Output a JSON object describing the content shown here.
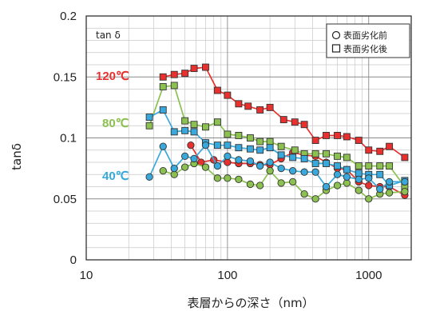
{
  "chart_data": {
    "type": "line",
    "ylabel": "tanδ",
    "xlabel": "表層からの深さ（nm）",
    "inner_label": "tan δ",
    "x_scale": "log",
    "xlim": [
      10,
      2000
    ],
    "ylim": [
      0,
      0.2
    ],
    "x_tick_labels": [
      "10",
      "100",
      "1000"
    ],
    "y_tick_labels": [
      "0",
      "0.05",
      "0.1",
      "0.15",
      "0.2"
    ],
    "x_ticks": [
      10,
      100,
      1000
    ],
    "y_ticks": [
      0,
      0.05,
      0.1,
      0.15,
      0.2
    ],
    "grid": true,
    "legend": {
      "position": "top-right",
      "entries": [
        {
          "label": "表面劣化前",
          "marker": "circle"
        },
        {
          "label": "表面劣化後",
          "marker": "square"
        }
      ]
    },
    "temperature_labels": [
      {
        "text": "120℃",
        "color": "#e8312f"
      },
      {
        "text": "80℃",
        "color": "#8cc152"
      },
      {
        "text": "40℃",
        "color": "#39a9dc"
      }
    ],
    "series": [
      {
        "temp": "120℃",
        "condition": "表面劣化後",
        "marker": "square",
        "color": "#e8312f",
        "x": [
          35,
          42,
          50,
          58,
          70,
          85,
          100,
          120,
          140,
          170,
          200,
          250,
          300,
          350,
          420,
          500,
          600,
          700,
          850,
          1000,
          1200,
          1400,
          1800
        ],
        "y": [
          0.15,
          0.152,
          0.153,
          0.157,
          0.158,
          0.139,
          0.135,
          0.128,
          0.126,
          0.123,
          0.125,
          0.115,
          0.113,
          0.111,
          0.098,
          0.102,
          0.102,
          0.101,
          0.098,
          0.09,
          0.089,
          0.093,
          0.084
        ]
      },
      {
        "temp": "120℃",
        "condition": "表面劣化前",
        "marker": "circle",
        "color": "#e8312f",
        "x": [
          55,
          65,
          80,
          100,
          120,
          145,
          170,
          200,
          240,
          290,
          350,
          420,
          500,
          600,
          700,
          850,
          1000,
          1200,
          1400,
          1800
        ],
        "y": [
          0.094,
          0.08,
          0.082,
          0.08,
          0.079,
          0.079,
          0.078,
          0.078,
          0.083,
          0.088,
          0.086,
          0.085,
          0.08,
          0.075,
          0.074,
          0.064,
          0.061,
          0.06,
          0.06,
          0.053
        ]
      },
      {
        "temp": "80℃",
        "condition": "表面劣化後",
        "marker": "square",
        "color": "#8cc152",
        "x": [
          28,
          35,
          42,
          50,
          58,
          70,
          85,
          100,
          120,
          145,
          170,
          200,
          240,
          300,
          350,
          420,
          500,
          600,
          700,
          850,
          1000,
          1200,
          1400,
          1800
        ],
        "y": [
          0.11,
          0.142,
          0.143,
          0.114,
          0.111,
          0.109,
          0.113,
          0.103,
          0.102,
          0.1,
          0.097,
          0.097,
          0.093,
          0.09,
          0.087,
          0.087,
          0.087,
          0.085,
          0.084,
          0.077,
          0.077,
          0.077,
          0.077,
          0.06
        ]
      },
      {
        "temp": "80℃",
        "condition": "表面劣化前",
        "marker": "circle",
        "color": "#8cc152",
        "x": [
          35,
          42,
          50,
          58,
          70,
          85,
          100,
          120,
          145,
          170,
          200,
          240,
          290,
          350,
          420,
          500,
          600,
          700,
          850,
          1000,
          1200,
          1400,
          1800
        ],
        "y": [
          0.073,
          0.07,
          0.076,
          0.079,
          0.076,
          0.067,
          0.067,
          0.066,
          0.062,
          0.061,
          0.073,
          0.063,
          0.064,
          0.054,
          0.05,
          0.057,
          0.061,
          0.063,
          0.057,
          0.05,
          0.054,
          0.055,
          0.056
        ]
      },
      {
        "temp": "40℃",
        "condition": "表面劣化後",
        "marker": "square",
        "color": "#39a9dc",
        "x": [
          28,
          35,
          42,
          50,
          58,
          70,
          85,
          100,
          120,
          145,
          170,
          200,
          240,
          290,
          350,
          420,
          500,
          600,
          700,
          850,
          1000,
          1200,
          1400,
          1800
        ],
        "y": [
          0.117,
          0.123,
          0.105,
          0.106,
          0.105,
          0.096,
          0.094,
          0.094,
          0.092,
          0.091,
          0.09,
          0.092,
          0.086,
          0.084,
          0.083,
          0.079,
          0.079,
          0.077,
          0.074,
          0.071,
          0.07,
          0.07,
          0.061,
          0.065
        ]
      },
      {
        "temp": "40℃",
        "condition": "表面劣化前",
        "marker": "circle",
        "color": "#39a9dc",
        "x": [
          28,
          35,
          42,
          50,
          58,
          70,
          85,
          100,
          120,
          145,
          170,
          200,
          240,
          290,
          350,
          420,
          500,
          600,
          700,
          850,
          1000,
          1200,
          1400,
          1800
        ],
        "y": [
          0.068,
          0.093,
          0.075,
          0.085,
          0.083,
          0.094,
          0.077,
          0.085,
          0.082,
          0.081,
          0.077,
          0.08,
          0.075,
          0.073,
          0.072,
          0.072,
          0.06,
          0.07,
          0.068,
          0.066,
          0.067,
          0.058,
          0.064,
          0.064
        ]
      }
    ]
  }
}
